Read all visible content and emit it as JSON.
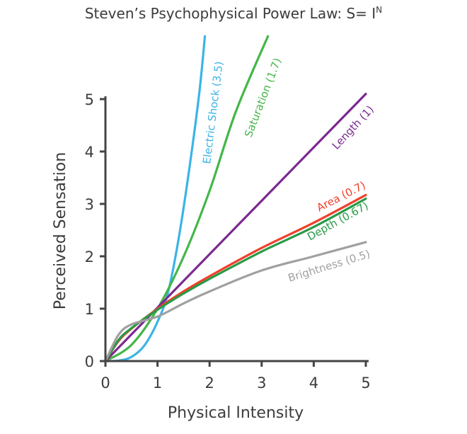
{
  "chart_data": {
    "type": "line",
    "title": "Steven’s Psychophysical Power Law: S= I",
    "title_superscript": "N",
    "xlabel": "Physical Intensity",
    "ylabel": "Perceived Sensation",
    "xlim": [
      0,
      5
    ],
    "ylim": [
      0,
      5
    ],
    "x_ticks": [
      "0",
      "1",
      "2",
      "3",
      "4",
      "5"
    ],
    "y_ticks": [
      "0",
      "1",
      "2",
      "3",
      "4",
      "5"
    ],
    "grid": false,
    "legend": "inline labels at line ends",
    "series": [
      {
        "name": "Electric Shock (3.5)",
        "exponent": 3.5,
        "color": "#3bb4e6",
        "points": [
          [
            0,
            0
          ],
          [
            0.25,
            0.01
          ],
          [
            0.5,
            0.08
          ],
          [
            0.75,
            0.3
          ],
          [
            1.0,
            0.75
          ],
          [
            1.2,
            1.3
          ],
          [
            1.4,
            2.3
          ],
          [
            1.6,
            3.6
          ],
          [
            1.8,
            5.1
          ],
          [
            1.91,
            6.2
          ]
        ]
      },
      {
        "name": "Saturation (1.7)",
        "exponent": 1.7,
        "color": "#44b649",
        "points": [
          [
            0,
            0
          ],
          [
            0.5,
            0.31
          ],
          [
            1,
            1
          ],
          [
            1.5,
            1.99
          ],
          [
            2,
            3.25
          ],
          [
            2.5,
            4.75
          ],
          [
            3.12,
            6.2
          ]
        ]
      },
      {
        "name": "Length (1)",
        "exponent": 1,
        "color": "#7b2a90",
        "points": [
          [
            0,
            0
          ],
          [
            5,
            5.1
          ]
        ]
      },
      {
        "name": "Area (0.7)",
        "exponent": 0.7,
        "color": "#f0402a",
        "points": [
          [
            0,
            0
          ],
          [
            0.25,
            0.38
          ],
          [
            0.5,
            0.62
          ],
          [
            1,
            1
          ],
          [
            1.5,
            1.33
          ],
          [
            2,
            1.62
          ],
          [
            3,
            2.16
          ],
          [
            4,
            2.64
          ],
          [
            5,
            3.17
          ]
        ]
      },
      {
        "name": "Depth (0.67)",
        "exponent": 0.67,
        "color": "#2a9a48",
        "points": [
          [
            0,
            0
          ],
          [
            0.25,
            0.4
          ],
          [
            0.5,
            0.63
          ],
          [
            1,
            0.98
          ],
          [
            1.5,
            1.29
          ],
          [
            2,
            1.57
          ],
          [
            3,
            2.09
          ],
          [
            4,
            2.56
          ],
          [
            5,
            3.1
          ]
        ]
      },
      {
        "name": "Brightness (0.5)",
        "exponent": 0.5,
        "color": "#a0a0a0",
        "points": [
          [
            0,
            0
          ],
          [
            0.25,
            0.5
          ],
          [
            0.5,
            0.7
          ],
          [
            1,
            0.85
          ],
          [
            1.5,
            1.1
          ],
          [
            2,
            1.33
          ],
          [
            3,
            1.73
          ],
          [
            4,
            2.0
          ],
          [
            5,
            2.27
          ]
        ]
      }
    ]
  }
}
